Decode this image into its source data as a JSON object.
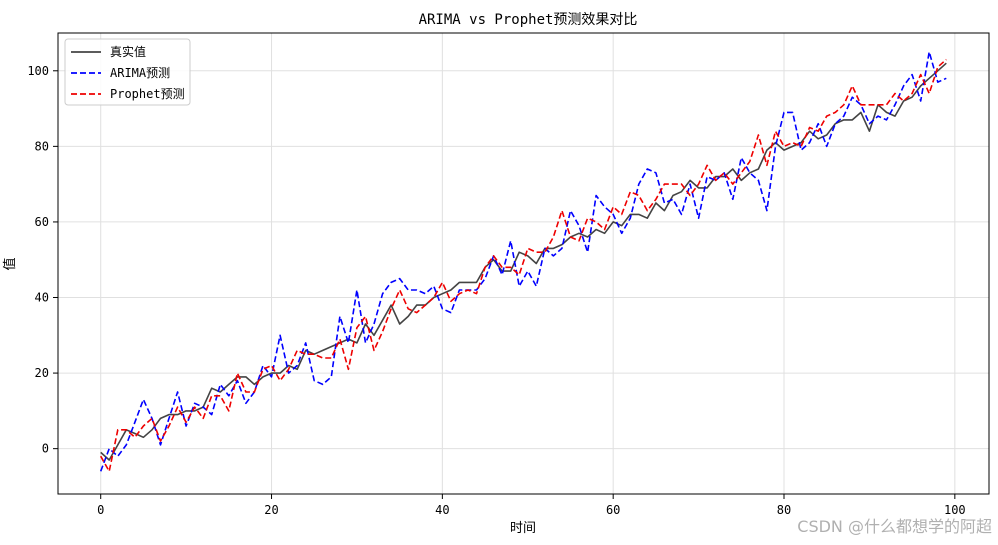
{
  "chart_data": {
    "type": "line",
    "title": "ARIMA vs Prophet预测效果对比",
    "xlabel": "时间",
    "ylabel": "值",
    "xlim": [
      -5,
      104
    ],
    "ylim": [
      -12,
      110
    ],
    "xticks": [
      0,
      20,
      40,
      60,
      80,
      100
    ],
    "yticks": [
      0,
      20,
      40,
      60,
      80,
      100
    ],
    "grid": true,
    "legend_position": "top-left",
    "series": [
      {
        "name": "真实值",
        "color": "#444444",
        "style": "solid",
        "x": [
          0,
          1,
          2,
          3,
          4,
          5,
          6,
          7,
          8,
          9,
          10,
          11,
          12,
          13,
          14,
          15,
          16,
          17,
          18,
          19,
          20,
          21,
          22,
          23,
          24,
          25,
          26,
          27,
          28,
          29,
          30,
          31,
          32,
          33,
          34,
          35,
          36,
          37,
          38,
          39,
          40,
          41,
          42,
          43,
          44,
          45,
          46,
          47,
          48,
          49,
          50,
          51,
          52,
          53,
          54,
          55,
          56,
          57,
          58,
          59,
          60,
          61,
          62,
          63,
          64,
          65,
          66,
          67,
          68,
          69,
          70,
          71,
          72,
          73,
          74,
          75,
          76,
          77,
          78,
          79,
          80,
          81,
          82,
          83,
          84,
          85,
          86,
          87,
          88,
          89,
          90,
          91,
          92,
          93,
          94,
          95,
          96,
          97,
          98,
          99
        ],
        "values": [
          -1,
          -3,
          1,
          5,
          4,
          3,
          5,
          8,
          9,
          9,
          10,
          10,
          11,
          16,
          15,
          17,
          19,
          19,
          17,
          19,
          20,
          20,
          22,
          21,
          26,
          25,
          26,
          27,
          28,
          29,
          28,
          33,
          30,
          34,
          38,
          33,
          35,
          38,
          38,
          40,
          41,
          42,
          44,
          44,
          44,
          48,
          50,
          47,
          47,
          52,
          51,
          49,
          53,
          53,
          54,
          56,
          57,
          56,
          58,
          57,
          60,
          59,
          62,
          62,
          61,
          65,
          63,
          67,
          68,
          71,
          69,
          69,
          72,
          72,
          74,
          71,
          73,
          74,
          79,
          81,
          79,
          80,
          81,
          84,
          82,
          83,
          86,
          87,
          87,
          89,
          84,
          91,
          89,
          88,
          92,
          93,
          96,
          98,
          100,
          102
        ]
      },
      {
        "name": "ARIMA预测",
        "color": "#0000ff",
        "style": "dashed",
        "x": [
          0,
          1,
          2,
          3,
          4,
          5,
          6,
          7,
          8,
          9,
          10,
          11,
          12,
          13,
          14,
          15,
          16,
          17,
          18,
          19,
          20,
          21,
          22,
          23,
          24,
          25,
          26,
          27,
          28,
          29,
          30,
          31,
          32,
          33,
          34,
          35,
          36,
          37,
          38,
          39,
          40,
          41,
          42,
          43,
          44,
          45,
          46,
          47,
          48,
          49,
          50,
          51,
          52,
          53,
          54,
          55,
          56,
          57,
          58,
          59,
          60,
          61,
          62,
          63,
          64,
          65,
          66,
          67,
          68,
          69,
          70,
          71,
          72,
          73,
          74,
          75,
          76,
          77,
          78,
          79,
          80,
          81,
          82,
          83,
          84,
          85,
          86,
          87,
          88,
          89,
          90,
          91,
          92,
          93,
          94,
          95,
          96,
          97,
          98,
          99
        ],
        "values": [
          -6,
          0,
          -2,
          1,
          7,
          13,
          8,
          1,
          8,
          15,
          6,
          12,
          11,
          9,
          17,
          14,
          18,
          12,
          15,
          22,
          19,
          30,
          20,
          22,
          28,
          18,
          17,
          19,
          35,
          28,
          42,
          28,
          33,
          41,
          44,
          45,
          42,
          42,
          41,
          43,
          37,
          36,
          42,
          42,
          42,
          45,
          51,
          46,
          55,
          43,
          47,
          43,
          53,
          51,
          53,
          63,
          59,
          52,
          67,
          64,
          62,
          57,
          61,
          70,
          74,
          73,
          65,
          66,
          62,
          70,
          61,
          72,
          71,
          73,
          66,
          77,
          73,
          71,
          63,
          80,
          89,
          89,
          79,
          81,
          86,
          80,
          86,
          88,
          93,
          91,
          86,
          88,
          87,
          91,
          96,
          99,
          92,
          105,
          97,
          98
        ]
      },
      {
        "name": "Prophet预测",
        "color": "#ee0000",
        "style": "dashed",
        "x": [
          0,
          1,
          2,
          3,
          4,
          5,
          6,
          7,
          8,
          9,
          10,
          11,
          12,
          13,
          14,
          15,
          16,
          17,
          18,
          19,
          20,
          21,
          22,
          23,
          24,
          25,
          26,
          27,
          28,
          29,
          30,
          31,
          32,
          33,
          34,
          35,
          36,
          37,
          38,
          39,
          40,
          41,
          42,
          43,
          44,
          45,
          46,
          47,
          48,
          49,
          50,
          51,
          52,
          53,
          54,
          55,
          56,
          57,
          58,
          59,
          60,
          61,
          62,
          63,
          64,
          65,
          66,
          67,
          68,
          69,
          70,
          71,
          72,
          73,
          74,
          75,
          76,
          77,
          78,
          79,
          80,
          81,
          82,
          83,
          84,
          85,
          86,
          87,
          88,
          89,
          90,
          91,
          92,
          93,
          94,
          95,
          96,
          97,
          98,
          99
        ],
        "values": [
          -2,
          -6,
          5,
          5,
          3,
          6,
          8,
          2,
          6,
          11,
          7,
          11,
          8,
          14,
          14,
          10,
          20,
          15,
          15,
          21,
          22,
          18,
          21,
          26,
          25,
          25,
          24,
          24,
          29,
          21,
          32,
          35,
          26,
          31,
          37,
          42,
          37,
          36,
          38,
          40,
          44,
          39,
          41,
          42,
          41,
          48,
          51,
          48,
          48,
          46,
          53,
          52,
          52,
          56,
          63,
          56,
          55,
          61,
          60,
          58,
          64,
          62,
          68,
          67,
          63,
          66,
          70,
          70,
          70,
          67,
          70,
          75,
          71,
          73,
          70,
          73,
          76,
          83,
          75,
          84,
          80,
          81,
          80,
          85,
          84,
          88,
          89,
          91,
          96,
          91,
          91,
          91,
          91,
          94,
          92,
          94,
          99,
          94,
          101,
          103
        ]
      }
    ]
  },
  "watermark": "CSDN @什么都想学的阿超"
}
